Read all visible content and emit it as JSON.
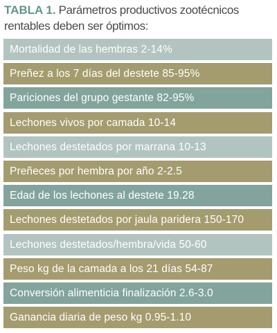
{
  "header": {
    "label": "TABLA 1.",
    "title": "Parámetros productivos zootécnicos rentables deben ser óptimos:"
  },
  "table": {
    "rows": [
      "Mortalidad de las hembras 2-14%",
      "Preñez a los 7 días del destete 85-95%",
      "Pariciones del grupo gestante 82-95%",
      "Lechones vivos por camada 10-14",
      "Lechones destetados por marrana 10-13",
      "Preñeces por hembra por año 2-2.5",
      "Edad de los lechones al destete 19.28",
      "Lechones destetados por jaula paridera 150-170",
      "Lechones destetados/hembra/vida 50-60",
      "Peso kg de la camada a los 21 días 54-87",
      "Conversión alimenticia finalización 2.6-3.0",
      "Ganancia diaria de peso kg 0.95-1.10"
    ]
  }
}
